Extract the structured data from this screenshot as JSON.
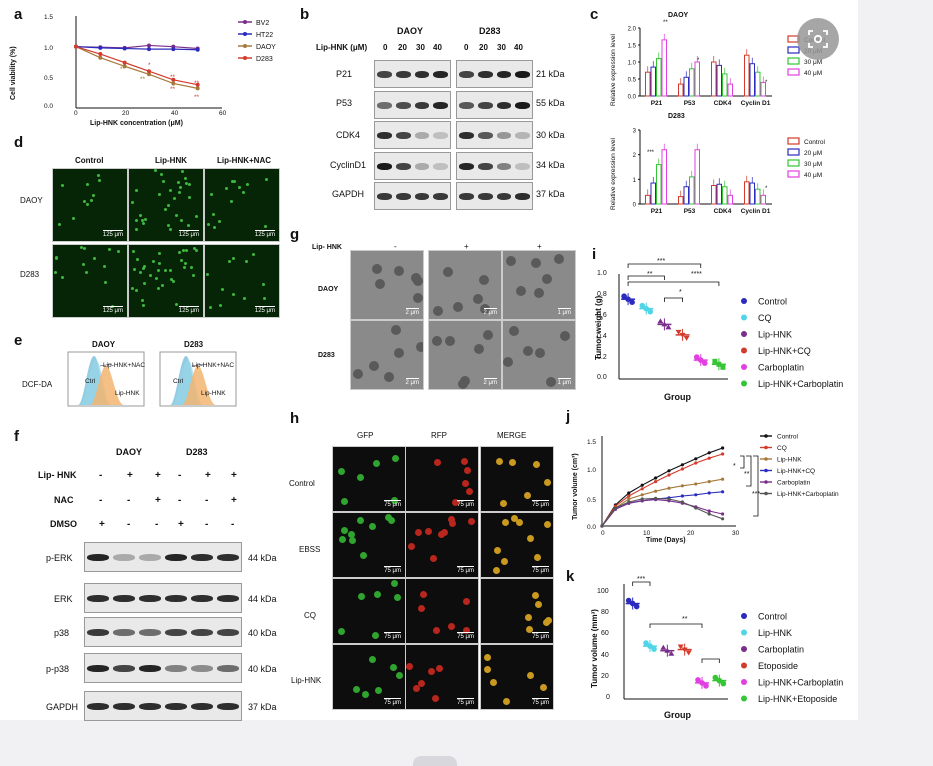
{
  "figure": {
    "panel_labels": [
      "a",
      "b",
      "c",
      "d",
      "e",
      "f",
      "g",
      "h",
      "i",
      "j",
      "k"
    ],
    "a": {
      "ylabel": "Cell viability (%)",
      "xlabel": "Lip-HNK concentration (μM)",
      "yticks": [
        "0.0",
        "0.5",
        "1.0",
        "1.5"
      ],
      "xticks": [
        "0",
        "20",
        "40",
        "60"
      ],
      "sig": [
        "*",
        "**",
        "**",
        "**",
        "**",
        "**",
        "**"
      ]
    },
    "b": {
      "treatment": "Lip-HNK (μM)",
      "cell_lines": [
        "DAOY",
        "D283"
      ],
      "doses": [
        "0",
        "20",
        "30",
        "40"
      ],
      "proteins": [
        "P21",
        "P53",
        "CDK4",
        "CyclinD1",
        "GAPDH"
      ],
      "sizes": [
        "21 kDa",
        "55 kDa",
        "30 kDa",
        "34 kDa",
        "37 kDa"
      ]
    },
    "c": {
      "titles": [
        "DAOY",
        "D283"
      ],
      "ylabel": "Relative expression level",
      "yticks_top": [
        "0.0",
        "0.5",
        "1.0",
        "1.5",
        "2.0"
      ],
      "yticks_bottom": [
        "0",
        "1",
        "2",
        "3"
      ],
      "sig": [
        "**",
        "*",
        "*",
        "***",
        "*"
      ]
    },
    "d": {
      "columns": [
        "Control",
        "Lip-HNK",
        "Lip-HNK+NAC"
      ],
      "rows": [
        "DAOY",
        "D283"
      ],
      "scale": "125 μm"
    },
    "e": {
      "titles": [
        "DAOY",
        "D283"
      ],
      "ylabel": "DCF-DA",
      "labels": [
        "Lip-HNK+NAC",
        "Ctrl",
        "Lip-HNK"
      ]
    },
    "f": {
      "cell_lines": [
        "DAOY",
        "D283"
      ],
      "conditions": [
        {
          "name": "Lip- HNK",
          "signs": [
            "-",
            "+",
            "+",
            "-",
            "+",
            "+"
          ]
        },
        {
          "name": "NAC",
          "signs": [
            "-",
            "-",
            "+",
            "-",
            "-",
            "+"
          ]
        },
        {
          "name": "DMSO",
          "signs": [
            "+",
            "-",
            "-",
            "+",
            "-",
            "-"
          ]
        }
      ],
      "proteins": [
        "p-ERK",
        "ERK",
        "p38",
        "p-p38",
        "GAPDH"
      ],
      "sizes": [
        "44 kDa",
        "44 kDa",
        "40 kDa",
        "40 kDa",
        "37 kDa"
      ]
    },
    "g": {
      "treatment": "Lip- HNK",
      "signs": [
        "-",
        "+",
        "+"
      ],
      "rows": [
        "DAOY",
        "D283"
      ],
      "scales": [
        "2 μm",
        "2 μm",
        "1 μm"
      ]
    },
    "h": {
      "columns": [
        "GFP",
        "RFP",
        "MERGE"
      ],
      "rows": [
        "Control",
        "EBSS",
        "CQ",
        "Lip-HNK"
      ],
      "scale": "75 μm"
    },
    "i": {
      "ylabel": "Tumor weight (g)",
      "xlabel": "Group",
      "sig": [
        "***",
        "**",
        "****",
        "*"
      ],
      "yticks": [
        "0.0",
        "0.2",
        "0.4",
        "0.6",
        "0.8",
        "1.0"
      ]
    },
    "j": {
      "ylabel": "Tumor volume (cm³)",
      "xlabel": "Time (Days)",
      "sig": [
        "*",
        "**",
        "***"
      ],
      "yticks": [
        "0.0",
        "0.5",
        "1.0",
        "1.5"
      ],
      "xticks": [
        "0",
        "10",
        "20",
        "30"
      ]
    },
    "k": {
      "ylabel": "Tumor volume (mm³)",
      "xlabel": "Group",
      "sig": [
        "***",
        "**"
      ],
      "yticks": [
        "0",
        "20",
        "40",
        "60",
        "80",
        "100"
      ]
    }
  },
  "colors": {
    "purple": "#7b2d8b",
    "blue": "#2b2bbf",
    "tan": "#a57a3c",
    "red": "#d33b2c",
    "cyan": "#4fd5e6",
    "magenta": "#e23fe2",
    "green": "#35c535",
    "pink": "#f06fe0",
    "gfp": "#1f9b1f"
  },
  "chart_data": [
    {
      "panel": "a",
      "type": "line",
      "x": [
        0,
        10,
        20,
        30,
        40,
        50
      ],
      "series": [
        {
          "name": "BV2",
          "values": [
            1.0,
            0.99,
            0.98,
            1.02,
            1.0,
            0.97
          ],
          "color": "#7b2d8b"
        },
        {
          "name": "HT22",
          "values": [
            1.0,
            0.98,
            0.97,
            0.96,
            0.96,
            0.95
          ],
          "color": "#2b2bbf"
        },
        {
          "name": "DAOY",
          "values": [
            1.0,
            0.82,
            0.68,
            0.55,
            0.4,
            0.32
          ],
          "color": "#a57a3c"
        },
        {
          "name": "D283",
          "values": [
            1.0,
            0.88,
            0.74,
            0.6,
            0.46,
            0.38
          ],
          "color": "#d33b2c"
        }
      ],
      "xlabel": "Lip-HNK concentration (μM)",
      "ylabel": "Cell viability (%)",
      "xlim": [
        0,
        60
      ],
      "ylim": [
        0,
        1.5
      ],
      "legend": "right"
    },
    {
      "panel": "c-top",
      "type": "bar",
      "title": "DAOY",
      "categories": [
        "P21",
        "P53",
        "CDK4",
        "Cyclin D1"
      ],
      "series": [
        {
          "name": "Control",
          "values": [
            0.7,
            0.35,
            1.0,
            1.2
          ],
          "color": "#d33b2c"
        },
        {
          "name": "20 μM",
          "values": [
            0.85,
            0.55,
            0.9,
            0.95
          ],
          "color": "#2b2bbf"
        },
        {
          "name": "30 μM",
          "values": [
            1.1,
            0.8,
            0.65,
            0.7
          ],
          "color": "#35c535"
        },
        {
          "name": "40 μM",
          "values": [
            1.65,
            1.0,
            0.35,
            0.4
          ],
          "color": "#e23fe2"
        }
      ],
      "ylabel": "Relative expression level",
      "ylim": [
        0,
        2.0
      ],
      "legend": "right"
    },
    {
      "panel": "c-bottom",
      "type": "bar",
      "title": "D283",
      "categories": [
        "P21",
        "P53",
        "CDK4",
        "Cyclin D1"
      ],
      "series": [
        {
          "name": "Control",
          "values": [
            0.35,
            0.3,
            0.75,
            0.9
          ],
          "color": "#d33b2c"
        },
        {
          "name": "20 μM",
          "values": [
            0.85,
            0.7,
            0.8,
            0.85
          ],
          "color": "#2b2bbf"
        },
        {
          "name": "30 μM",
          "values": [
            1.6,
            1.1,
            0.7,
            0.6
          ],
          "color": "#35c535"
        },
        {
          "name": "40 μM",
          "values": [
            2.2,
            2.2,
            0.35,
            0.35
          ],
          "color": "#e23fe2"
        }
      ],
      "ylabel": "Relative expression level",
      "ylim": [
        0,
        3
      ],
      "legend": "right"
    },
    {
      "panel": "i",
      "type": "scatter",
      "categories": [
        "Control",
        "CQ",
        "Lip-HNK",
        "Lip-HNK+CQ",
        "Carboplatin",
        "Lip-HNK+Carboplatin"
      ],
      "values": [
        0.76,
        0.67,
        0.52,
        0.42,
        0.18,
        0.14
      ],
      "markers": [
        "circle",
        "circle",
        "triangle-up",
        "triangle-down",
        "circle",
        "square"
      ],
      "colors": [
        "#2b2bbf",
        "#4fd5e6",
        "#7b2d8b",
        "#d33b2c",
        "#e23fe2",
        "#35c535"
      ],
      "ylabel": "Tumor weight (g)",
      "xlabel": "Group",
      "ylim": [
        0,
        1.0
      ],
      "legend": "right"
    },
    {
      "panel": "j",
      "type": "line",
      "x": [
        0,
        3,
        6,
        9,
        12,
        15,
        18,
        21,
        24,
        27
      ],
      "series": [
        {
          "name": "Control",
          "values": [
            0,
            0.35,
            0.55,
            0.68,
            0.8,
            0.92,
            1.02,
            1.12,
            1.22,
            1.3
          ],
          "color": "#111111"
        },
        {
          "name": "CQ",
          "values": [
            0,
            0.33,
            0.5,
            0.62,
            0.74,
            0.85,
            0.95,
            1.05,
            1.13,
            1.2
          ],
          "color": "#d33b2c"
        },
        {
          "name": "Lip-HNK",
          "values": [
            0,
            0.3,
            0.45,
            0.52,
            0.58,
            0.63,
            0.67,
            0.7,
            0.74,
            0.78
          ],
          "color": "#a57a3c"
        },
        {
          "name": "Lip-HNK+CQ",
          "values": [
            0,
            0.28,
            0.38,
            0.42,
            0.45,
            0.47,
            0.5,
            0.52,
            0.55,
            0.57
          ],
          "color": "#2b2bbf"
        },
        {
          "name": "Carboplatin",
          "values": [
            0,
            0.28,
            0.38,
            0.42,
            0.44,
            0.42,
            0.38,
            0.32,
            0.25,
            0.2
          ],
          "color": "#7b2d8b"
        },
        {
          "name": "Lip-HNK+Carboplatin",
          "values": [
            0,
            0.3,
            0.4,
            0.45,
            0.46,
            0.45,
            0.4,
            0.3,
            0.2,
            0.12
          ],
          "color": "#555555"
        }
      ],
      "xlabel": "Time (Days)",
      "ylabel": "Tumor volume (cm³)",
      "xlim": [
        0,
        30
      ],
      "ylim": [
        0,
        1.5
      ],
      "legend": "right"
    },
    {
      "panel": "k",
      "type": "scatter",
      "categories": [
        "Control",
        "Lip-HNK",
        "Carboplatin",
        "Etoposide",
        "Lip-HNK+Carboplatin",
        "Lip-HNK+Etoposide"
      ],
      "values": [
        83,
        46,
        42,
        43,
        14,
        16
      ],
      "markers": [
        "circle",
        "circle",
        "triangle-up",
        "triangle-down",
        "circle",
        "circle"
      ],
      "colors": [
        "#2b2bbf",
        "#4fd5e6",
        "#7b2d8b",
        "#d33b2c",
        "#e23fe2",
        "#35c535"
      ],
      "ylabel": "Tumor volume (mm³)",
      "xlabel": "Group",
      "ylim": [
        0,
        100
      ],
      "legend": "right"
    }
  ]
}
